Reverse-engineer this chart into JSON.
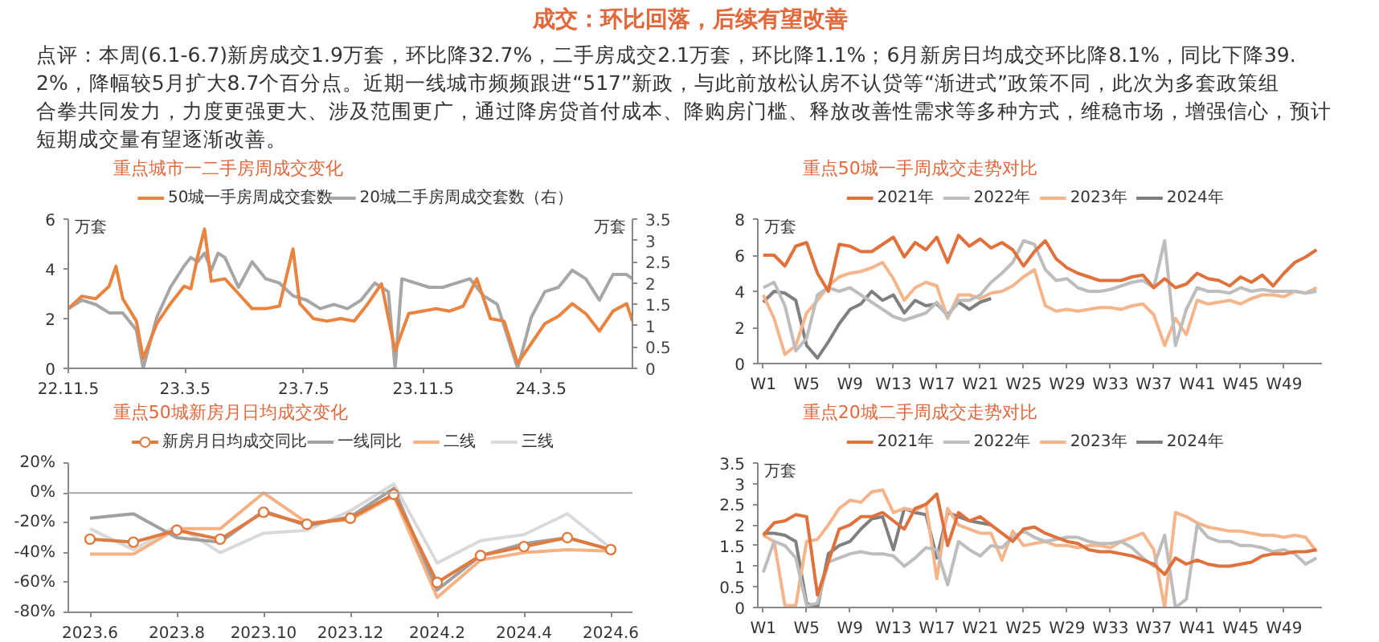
{
  "chart_data": [
    {
      "type": "other",
      "title": "成交：环比回落，后续有望改善",
      "annotations": [
        "点评：本周(6.1-6.7)新房成交1.9万套，环比降32.7%，二手房成交2.1万套，环比降1.1%；6月新房日均成交环比降8.1%，同比下降39.2%，降幅较5月扩大8.7个百分点。近期一线城市频频跟进“517”新政，与此前放松认房不认贷等“渐进式”政策不同，此次为多套政策组合拳共同发力，力度更强更大、涉及范围更广，通过降房贷首付成本、降购房门槛、释放改善性需求等多种方式，维稳市场，增强信心，预计短期成交量有望逐渐改善。"
      ]
    },
    {
      "type": "line",
      "title": "重点城市一二手房周成交变化",
      "ylabel": "万套",
      "y2label": "万套",
      "legend": "top",
      "xlim": [
        "2022-11-05",
        "2024-06-07"
      ],
      "xticks": [
        {
          "value": "2022-11-05",
          "label": "22.11.5"
        },
        {
          "value": "2023-03-05",
          "label": "23.3.5"
        },
        {
          "value": "2023-07-05",
          "label": "23.7.5"
        },
        {
          "value": "2023-11-05",
          "label": "23.11.5"
        },
        {
          "value": "2024-03-05",
          "label": "24.3.5"
        }
      ],
      "ylim": [
        0,
        6
      ],
      "yticks": [
        0,
        2,
        4,
        6
      ],
      "y2lim": [
        0,
        3.5
      ],
      "y2ticks": [
        0,
        0.5,
        1,
        1.5,
        2,
        2.5,
        3,
        3.5
      ],
      "series": [
        {
          "name": "50城一手房周成交套数",
          "color": "#e8843f",
          "x": [
            "2022-11-05",
            "2022-11-19",
            "2022-12-03",
            "2022-12-17",
            "2022-12-24",
            "2022-12-31",
            "2023-01-14",
            "2023-01-21",
            "2023-02-04",
            "2023-02-18",
            "2023-03-04",
            "2023-03-11",
            "2023-03-18",
            "2023-03-25",
            "2023-04-01",
            "2023-04-15",
            "2023-04-29",
            "2023-05-13",
            "2023-05-27",
            "2023-06-10",
            "2023-06-24",
            "2023-07-01",
            "2023-07-15",
            "2023-07-29",
            "2023-08-12",
            "2023-08-26",
            "2023-09-09",
            "2023-09-23",
            "2023-10-07",
            "2023-10-21",
            "2023-11-04",
            "2023-11-18",
            "2023-12-02",
            "2023-12-16",
            "2023-12-30",
            "2024-01-13",
            "2024-01-27",
            "2024-02-10",
            "2024-02-24",
            "2024-03-09",
            "2024-03-23",
            "2024-04-06",
            "2024-04-20",
            "2024-05-04",
            "2024-05-18",
            "2024-06-01",
            "2024-06-07"
          ],
          "values": [
            2.4,
            2.9,
            2.8,
            3.3,
            4.1,
            2.8,
            1.9,
            0.4,
            1.8,
            2.6,
            3.3,
            3.2,
            4.5,
            5.6,
            3.5,
            3.6,
            3.0,
            2.4,
            2.4,
            2.5,
            4.8,
            2.6,
            2.0,
            1.9,
            2.0,
            1.9,
            2.6,
            3.4,
            0.7,
            2.2,
            2.3,
            2.4,
            2.3,
            2.5,
            3.6,
            2.0,
            1.9,
            0.2,
            1.0,
            1.8,
            2.1,
            2.6,
            2.2,
            1.5,
            2.3,
            2.6,
            1.9
          ]
        },
        {
          "name": "20城二手房周成交套数（右）",
          "color": "#a6a6a6",
          "axis": "y2",
          "x": [
            "2022-11-05",
            "2022-11-19",
            "2022-12-03",
            "2022-12-17",
            "2022-12-31",
            "2023-01-14",
            "2023-01-21",
            "2023-02-04",
            "2023-02-18",
            "2023-03-04",
            "2023-03-11",
            "2023-03-18",
            "2023-03-25",
            "2023-04-01",
            "2023-04-08",
            "2023-04-15",
            "2023-04-29",
            "2023-05-13",
            "2023-05-27",
            "2023-06-10",
            "2023-06-24",
            "2023-07-08",
            "2023-07-22",
            "2023-08-05",
            "2023-08-19",
            "2023-09-02",
            "2023-09-16",
            "2023-09-30",
            "2023-10-07",
            "2023-10-14",
            "2023-10-28",
            "2023-11-11",
            "2023-11-25",
            "2023-12-09",
            "2023-12-23",
            "2024-01-06",
            "2024-01-20",
            "2024-02-10",
            "2024-02-24",
            "2024-03-09",
            "2024-03-23",
            "2024-04-06",
            "2024-04-20",
            "2024-05-04",
            "2024-05-18",
            "2024-06-01",
            "2024-06-07"
          ],
          "values": [
            1.4,
            1.6,
            1.5,
            1.3,
            1.3,
            0.9,
            0.0,
            1.2,
            1.9,
            2.4,
            2.6,
            2.5,
            2.7,
            2.3,
            2.7,
            2.6,
            1.9,
            2.5,
            2.1,
            2.0,
            1.7,
            1.6,
            1.4,
            1.5,
            1.4,
            1.6,
            2.0,
            1.8,
            0.0,
            2.1,
            2.0,
            1.9,
            1.9,
            2.0,
            2.1,
            1.7,
            1.5,
            0.0,
            1.2,
            1.8,
            1.9,
            2.3,
            2.1,
            1.6,
            2.2,
            2.2,
            2.1
          ]
        }
      ]
    },
    {
      "type": "line",
      "title": "重点50城一手周成交走势对比",
      "ylabel": "万套",
      "legend": "top",
      "ylim": [
        0,
        8
      ],
      "yticks": [
        0,
        2,
        4,
        6,
        8
      ],
      "categories": [
        "W1",
        null,
        null,
        null,
        "W5",
        null,
        null,
        null,
        "W9",
        null,
        null,
        null,
        "W13",
        null,
        null,
        null,
        "W17",
        null,
        null,
        null,
        "W21",
        null,
        null,
        null,
        "W25",
        null,
        null,
        null,
        "W29",
        null,
        null,
        null,
        "W33",
        null,
        null,
        null,
        "W37",
        null,
        null,
        null,
        "W41",
        null,
        null,
        null,
        "W45",
        null,
        null,
        null,
        "W49",
        null,
        null,
        null
      ],
      "series": [
        {
          "name": "2021年",
          "color": "#e0703c",
          "values": [
            6.0,
            6.0,
            5.4,
            6.5,
            6.7,
            5.0,
            4.0,
            6.6,
            6.5,
            6.2,
            6.2,
            6.6,
            7.0,
            5.9,
            6.7,
            6.3,
            7.0,
            5.6,
            7.1,
            6.5,
            6.9,
            6.4,
            6.7,
            6.3,
            5.4,
            6.2,
            6.8,
            5.8,
            5.3,
            5.0,
            4.8,
            4.6,
            4.6,
            4.6,
            4.8,
            4.9,
            4.2,
            4.7,
            4.2,
            4.4,
            5.0,
            4.7,
            4.6,
            4.3,
            4.8,
            4.5,
            4.9,
            4.3,
            5.0,
            5.6,
            5.9,
            6.3
          ]
        },
        {
          "name": "2022年",
          "color": "#bdbdbd",
          "values": [
            4.2,
            4.5,
            3.2,
            0.7,
            1.4,
            3.8,
            4.2,
            4.0,
            4.2,
            3.8,
            3.4,
            3.0,
            2.6,
            2.4,
            2.6,
            2.8,
            3.4,
            2.6,
            3.5,
            3.5,
            3.8,
            4.5,
            5.0,
            5.6,
            6.8,
            6.6,
            5.2,
            4.6,
            4.7,
            4.2,
            4.0,
            4.0,
            4.1,
            4.3,
            4.5,
            4.6,
            4.2,
            6.8,
            1.0,
            3.0,
            4.2,
            4.0,
            4.0,
            3.9,
            4.2,
            4.0,
            4.1,
            4.0,
            4.0,
            4.0,
            3.9,
            4.0
          ]
        },
        {
          "name": "2023年",
          "color": "#f5b48a",
          "values": [
            3.8,
            2.5,
            0.5,
            1.0,
            2.8,
            3.5,
            4.3,
            4.8,
            5.0,
            5.1,
            5.3,
            5.6,
            4.7,
            3.5,
            4.2,
            4.5,
            4.3,
            2.5,
            3.8,
            3.8,
            3.6,
            3.9,
            4.0,
            4.3,
            4.8,
            5.2,
            3.2,
            2.9,
            3.0,
            2.9,
            3.0,
            3.1,
            3.1,
            3.0,
            3.2,
            3.3,
            2.7,
            1.0,
            2.5,
            1.6,
            3.5,
            3.3,
            3.4,
            3.5,
            3.3,
            3.6,
            3.8,
            3.8,
            3.7,
            4.0,
            3.9,
            4.2
          ]
        },
        {
          "name": "2024年",
          "color": "#7f7f7f",
          "values": [
            3.4,
            4.0,
            3.9,
            3.5,
            1.0,
            0.3,
            1.2,
            2.2,
            3.0,
            3.3,
            4.0,
            3.5,
            3.8,
            2.8,
            3.5,
            3.2,
            3.3,
            2.7,
            3.4,
            3.0,
            3.4,
            3.6,
            null,
            null,
            null,
            null,
            null,
            null,
            null,
            null,
            null,
            null,
            null,
            null,
            null,
            null,
            null,
            null,
            null,
            null,
            null,
            null,
            null,
            null,
            null,
            null,
            null,
            null,
            null,
            null,
            null,
            null
          ]
        }
      ]
    },
    {
      "type": "line",
      "title": "重点50城新房月日均成交变化",
      "legend": "top",
      "ylim": [
        -80,
        20
      ],
      "yticks": [
        {
          "value": -80,
          "label": "-80%"
        },
        {
          "value": -60,
          "label": "-60%"
        },
        {
          "value": -40,
          "label": "-40%"
        },
        {
          "value": -20,
          "label": "-20%"
        },
        {
          "value": 0,
          "label": "0%"
        },
        {
          "value": 20,
          "label": "20%"
        }
      ],
      "ref_lines": [
        {
          "axis": "y",
          "value": 0,
          "color": "#a6a6a6"
        }
      ],
      "categories": [
        "2023.6",
        null,
        "2023.8",
        null,
        "2023.10",
        null,
        "2023.12",
        null,
        "2024.2",
        null,
        "2024.4",
        null,
        "2024.6"
      ],
      "series": [
        {
          "name": "新房月日均成交同比",
          "color": "#e07b3f",
          "marker": "circle",
          "values": [
            -31,
            -33,
            -25,
            -31,
            -13,
            -21,
            -17,
            -1,
            -60,
            -42,
            -36,
            -30,
            -38
          ]
        },
        {
          "name": "一线同比",
          "color": "#a0a0a0",
          "values": [
            -17,
            -14,
            -30,
            -33,
            -12,
            -22,
            -16,
            3,
            -65,
            -42,
            -34,
            -30,
            -38
          ]
        },
        {
          "name": "二线",
          "color": "#f4b183",
          "values": [
            -41,
            -41,
            -24,
            -24,
            0,
            -20,
            -18,
            -2,
            -70,
            -45,
            -40,
            -38,
            -39
          ]
        },
        {
          "name": "三线",
          "color": "#d9d9d9",
          "values": [
            -24,
            -38,
            -22,
            -40,
            -27,
            -25,
            -12,
            6,
            -47,
            -32,
            -28,
            -14,
            -37
          ]
        }
      ]
    },
    {
      "type": "line",
      "title": "重点20城二手周成交走势对比",
      "ylabel": "万套",
      "legend": "top",
      "ylim": [
        0,
        3.5
      ],
      "yticks": [
        0,
        0.5,
        1,
        1.5,
        2,
        2.5,
        3,
        3.5
      ],
      "categories": [
        "W1",
        null,
        null,
        null,
        "W5",
        null,
        null,
        null,
        "W9",
        null,
        null,
        null,
        "W13",
        null,
        null,
        null,
        "W17",
        null,
        null,
        null,
        "W21",
        null,
        null,
        null,
        "W25",
        null,
        null,
        null,
        "W29",
        null,
        null,
        null,
        "W33",
        null,
        null,
        null,
        "W37",
        null,
        null,
        null,
        "W41",
        null,
        null,
        null,
        "W45",
        null,
        null,
        null,
        "W49",
        null,
        null,
        null
      ],
      "series": [
        {
          "name": "2021年",
          "color": "#e0703c",
          "values": [
            1.75,
            2.05,
            2.1,
            2.25,
            2.2,
            0.3,
            1.1,
            1.9,
            2.0,
            2.2,
            2.2,
            2.3,
            2.1,
            1.9,
            2.4,
            2.5,
            2.75,
            1.5,
            2.3,
            2.1,
            2.2,
            2.0,
            1.8,
            1.6,
            1.9,
            1.95,
            1.8,
            1.7,
            1.6,
            1.55,
            1.4,
            1.35,
            1.35,
            1.3,
            1.25,
            1.15,
            1.05,
            0.8,
            1.2,
            1.05,
            1.15,
            1.05,
            1.0,
            1.0,
            1.05,
            1.1,
            1.25,
            1.3,
            1.3,
            1.35,
            1.35,
            1.4
          ]
        },
        {
          "name": "2022年",
          "color": "#bdbdbd",
          "values": [
            0.85,
            1.6,
            1.5,
            1.2,
            0.05,
            0.1,
            1.1,
            1.2,
            1.3,
            1.35,
            1.3,
            1.3,
            1.25,
            1.0,
            1.2,
            1.45,
            1.4,
            0.55,
            1.6,
            1.4,
            1.25,
            1.5,
            1.45,
            1.7,
            1.85,
            1.7,
            1.6,
            1.65,
            1.7,
            1.7,
            1.6,
            1.55,
            1.55,
            1.6,
            1.45,
            1.2,
            1.0,
            1.75,
            0.0,
            0.2,
            2.0,
            1.7,
            1.6,
            1.6,
            1.5,
            1.5,
            1.45,
            1.35,
            1.4,
            1.3,
            1.05,
            1.2
          ]
        },
        {
          "name": "2023年",
          "color": "#f5b48a",
          "values": [
            1.75,
            1.6,
            0.05,
            0.05,
            1.6,
            1.65,
            2.0,
            2.4,
            2.6,
            2.55,
            2.8,
            2.85,
            2.3,
            2.4,
            2.35,
            2.5,
            0.7,
            2.4,
            2.0,
            1.9,
            1.8,
            1.8,
            1.15,
            1.85,
            1.5,
            1.55,
            1.6,
            1.5,
            1.5,
            1.45,
            1.5,
            1.5,
            1.45,
            1.6,
            1.7,
            1.8,
            1.4,
            0.0,
            2.3,
            2.2,
            2.05,
            1.95,
            1.9,
            1.85,
            1.85,
            1.8,
            1.75,
            1.75,
            1.7,
            1.75,
            1.7,
            1.35
          ]
        },
        {
          "name": "2024年",
          "color": "#7f7f7f",
          "values": [
            1.8,
            1.8,
            1.75,
            1.6,
            0.1,
            0.0,
            1.3,
            1.5,
            1.6,
            1.9,
            2.15,
            2.2,
            1.4,
            2.4,
            2.3,
            2.25,
            1.2,
            2.3,
            2.2,
            2.1,
            2.05,
            2.0,
            null,
            null,
            null,
            null,
            null,
            null,
            null,
            null,
            null,
            null,
            null,
            null,
            null,
            null,
            null,
            null,
            null,
            null,
            null,
            null,
            null,
            null,
            null,
            null,
            null,
            null,
            null,
            null,
            null,
            null
          ]
        }
      ]
    }
  ]
}
